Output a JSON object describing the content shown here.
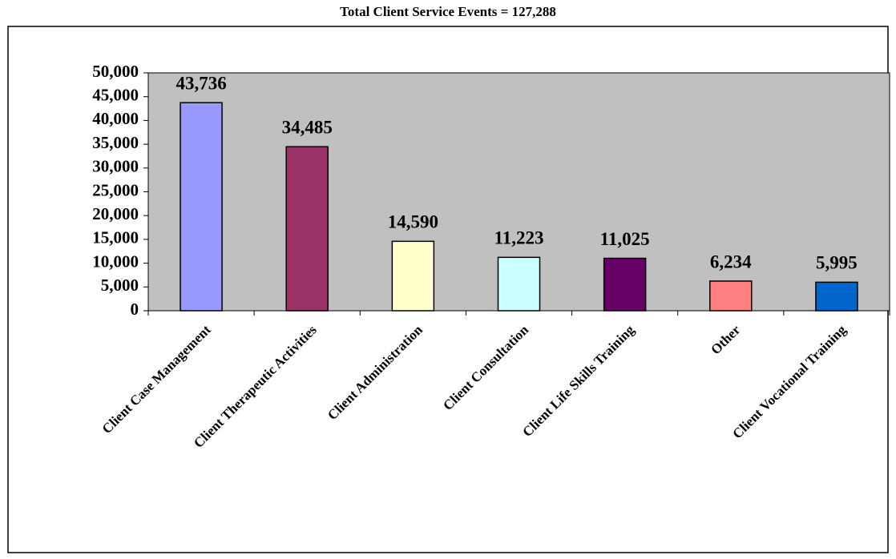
{
  "chart_data": {
    "type": "bar",
    "title": "Total Client Service Events = 127,288",
    "categories": [
      "Client Case Management",
      "Client Therapeutic Activities",
      "Client Administration",
      "Client Consultation",
      "Client Life Skills Training",
      "Other",
      "Client Vocational Training"
    ],
    "values": [
      43736,
      34485,
      14590,
      11223,
      11025,
      6234,
      5995
    ],
    "value_labels": [
      "43,736",
      "34,485",
      "14,590",
      "11,223",
      "11,025",
      "6,234",
      "5,995"
    ],
    "colors": [
      "#9999ff",
      "#993366",
      "#ffffcc",
      "#ccffff",
      "#660066",
      "#ff8080",
      "#0066cc"
    ],
    "ylim": [
      0,
      50000
    ],
    "yticks": [
      0,
      {
        "value": 5000,
        "label": "5,000"
      },
      {
        "value": 10000,
        "label": "10,000"
      },
      {
        "value": 15000,
        "label": "15,000"
      },
      {
        "value": 20000,
        "label": "20,000"
      },
      {
        "value": 25000,
        "label": "25,000"
      },
      {
        "value": 30000,
        "label": "30,000"
      },
      {
        "value": 35000,
        "label": "35,000"
      },
      {
        "value": 40000,
        "label": "40,000"
      },
      {
        "value": 45000,
        "label": "45,000"
      },
      {
        "value": 50000,
        "label": "50,000"
      }
    ],
    "grid": false,
    "plot_background": "#c0c0c0"
  }
}
